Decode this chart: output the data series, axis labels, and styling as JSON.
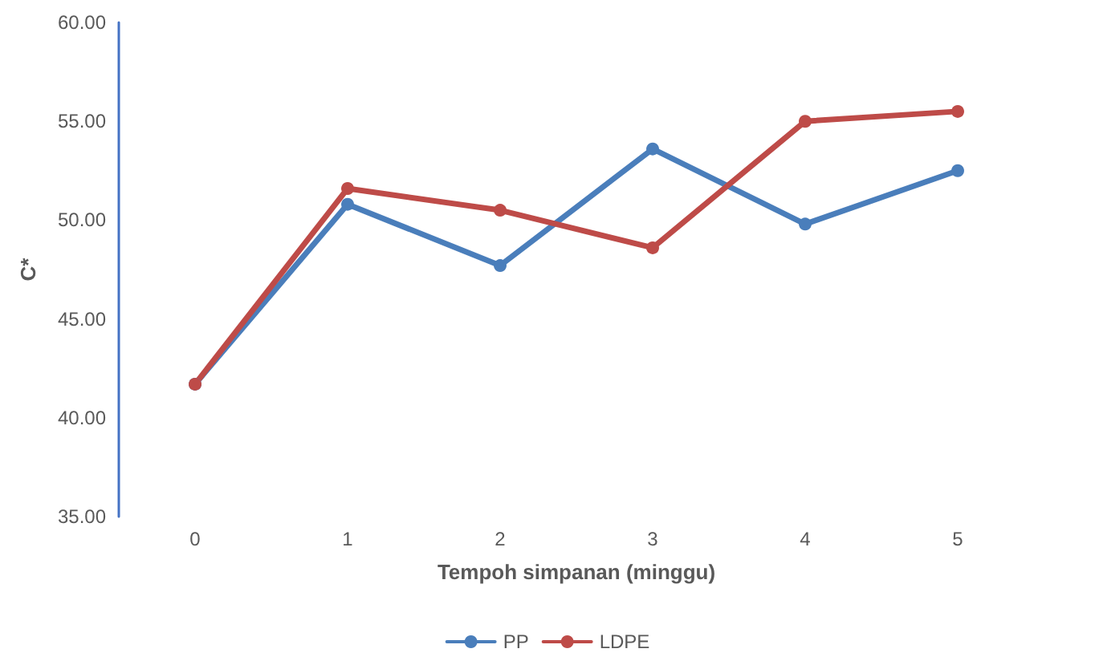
{
  "chart_data": {
    "type": "line",
    "xlabel": "Tempoh simpanan (minggu)",
    "ylabel": "C*",
    "categories": [
      "0",
      "1",
      "2",
      "3",
      "4",
      "5"
    ],
    "series": [
      {
        "name": "PP",
        "color": "#4a7ebb",
        "values": [
          41.7,
          50.8,
          47.7,
          53.6,
          49.8,
          52.5
        ]
      },
      {
        "name": "LDPE",
        "color": "#be4b48",
        "values": [
          41.7,
          51.6,
          50.5,
          48.6,
          55.0,
          55.5
        ]
      }
    ],
    "ylim": [
      35,
      60
    ],
    "yticks": [
      {
        "value": 35,
        "label": "35.00"
      },
      {
        "value": 40,
        "label": "40.00"
      },
      {
        "value": 45,
        "label": "45.00"
      },
      {
        "value": 50,
        "label": "50.00"
      },
      {
        "value": 55,
        "label": "55.00"
      },
      {
        "value": 60,
        "label": "60.00"
      }
    ],
    "grid": false,
    "legend": "bottom",
    "marker": "circle",
    "line_style": "solid"
  }
}
